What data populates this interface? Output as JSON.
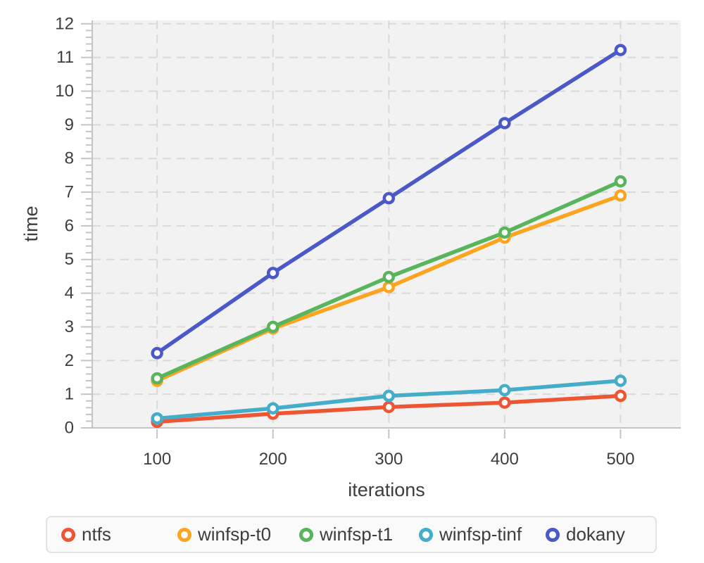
{
  "chart_data": {
    "type": "line",
    "title": "",
    "xlabel": "iterations",
    "ylabel": "time",
    "x": [
      100,
      200,
      300,
      400,
      500
    ],
    "x_tick_labels": [
      "100",
      "200",
      "300",
      "400",
      "500"
    ],
    "y_ticks": [
      0,
      1,
      2,
      3,
      4,
      5,
      6,
      7,
      8,
      9,
      10,
      11,
      12
    ],
    "y_minor_tick_step": 0.2,
    "xlim": [
      44,
      552
    ],
    "ylim": [
      0,
      12.1
    ],
    "grid": {
      "horizontal": true,
      "vertical": true,
      "style": "dashed"
    },
    "legend_position": "bottom",
    "marker_style": "open-circle",
    "series": [
      {
        "name": "ntfs",
        "color": "#ee5633",
        "values": [
          0.18,
          0.42,
          0.62,
          0.75,
          0.95
        ]
      },
      {
        "name": "winfsp-t0",
        "color": "#fba41f",
        "values": [
          1.4,
          2.95,
          4.18,
          5.65,
          6.9
        ]
      },
      {
        "name": "winfsp-t1",
        "color": "#58b55c",
        "values": [
          1.47,
          3.0,
          4.48,
          5.8,
          7.32
        ]
      },
      {
        "name": "winfsp-tinf",
        "color": "#44adc9",
        "values": [
          0.28,
          0.58,
          0.95,
          1.12,
          1.4
        ]
      },
      {
        "name": "dokany",
        "color": "#4a58c8",
        "values": [
          2.22,
          4.6,
          6.82,
          9.05,
          11.22
        ]
      }
    ],
    "colors": {
      "page_background": "#ffffff",
      "plot_background": "#f2f2f2",
      "gridline": "#d9d9d9",
      "axis": "#c4c4c4",
      "text": "#3d3d3d",
      "legend_background": "#fafafa",
      "legend_border": "#e2e2e2"
    }
  }
}
